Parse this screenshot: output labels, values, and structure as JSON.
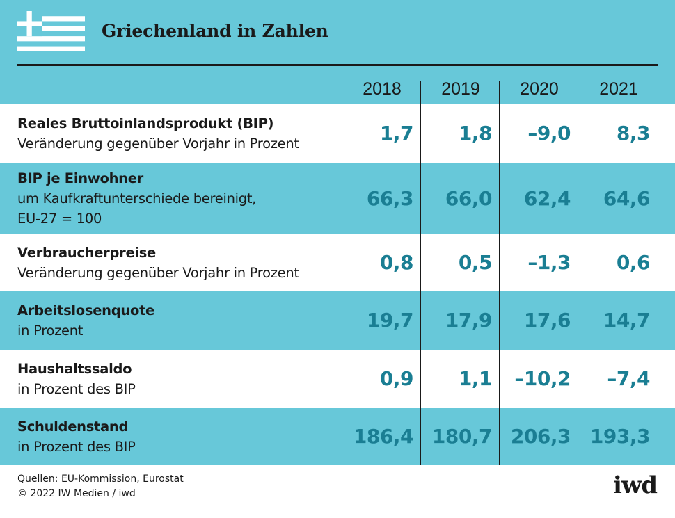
{
  "title": "Griechenland in Zahlen",
  "flag_icon": "greek-flag-icon",
  "colors": {
    "accent": "#67c8d9",
    "value": "#1a7e93",
    "text": "#1a1a1a"
  },
  "chart_data": {
    "type": "table",
    "title": "Griechenland in Zahlen",
    "columns": [
      "2018",
      "2019",
      "2020",
      "2021"
    ],
    "rows": [
      {
        "title": "Reales Bruttoinlandsprodukt (BIP)",
        "subtitle": [
          "Veränderung gegenüber Vorjahr in Prozent"
        ],
        "values": [
          "1,7",
          "1,8",
          "–9,0",
          "8,3"
        ]
      },
      {
        "title": "BIP je Einwohner",
        "subtitle": [
          "um Kaufkraftunterschiede bereinigt,",
          "EU-27 = 100"
        ],
        "values": [
          "66,3",
          "66,0",
          "62,4",
          "64,6"
        ]
      },
      {
        "title": "Verbraucherpreise",
        "subtitle": [
          "Veränderung gegenüber Vorjahr in Prozent"
        ],
        "values": [
          "0,8",
          "0,5",
          "–1,3",
          "0,6"
        ]
      },
      {
        "title": "Arbeitslosenquote",
        "subtitle": [
          "in Prozent"
        ],
        "values": [
          "19,7",
          "17,9",
          "17,6",
          "14,7"
        ]
      },
      {
        "title": "Haushaltssaldo",
        "subtitle": [
          "in Prozent des BIP"
        ],
        "values": [
          "0,9",
          "1,1",
          "–10,2",
          "–7,4"
        ]
      },
      {
        "title": "Schuldenstand",
        "subtitle": [
          "in Prozent des BIP"
        ],
        "values": [
          "186,4",
          "180,7",
          "206,3",
          "193,3"
        ]
      }
    ]
  },
  "footer": {
    "source": "Quellen: EU-Kommission, Eurostat",
    "copyright": "© 2022 IW Medien / iwd"
  },
  "logo_text": "iwd"
}
